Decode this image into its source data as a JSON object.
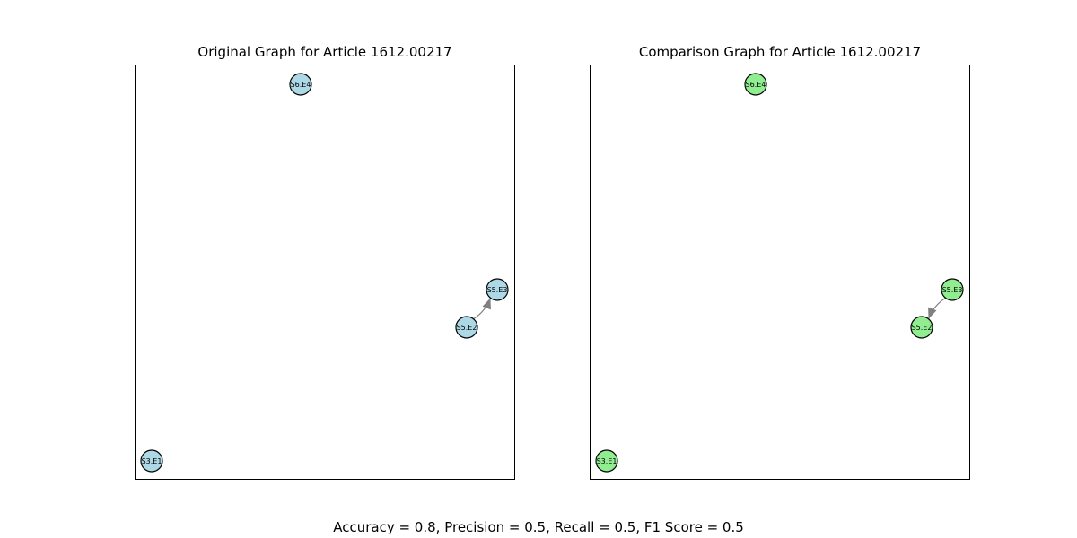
{
  "graphs": [
    {
      "title": "Original Graph for Article 1612.00217",
      "node_color": "#add8e6",
      "nodes": [
        "S6.E4",
        "S5.E3",
        "S5.E2",
        "S3.E1"
      ],
      "edges": [
        {
          "from": "S5.E2",
          "to": "S5.E3"
        }
      ]
    },
    {
      "title": "Comparison Graph for Article 1612.00217",
      "node_color": "#90ee90",
      "nodes": [
        "S6.E4",
        "S5.E3",
        "S5.E2",
        "S3.E1"
      ],
      "edges": [
        {
          "from": "S5.E3",
          "to": "S5.E2"
        }
      ]
    }
  ],
  "edge_color": "#808080",
  "metrics": {
    "text": "Accuracy = 0.8, Precision = 0.5, Recall = 0.5, F1 Score = 0.5"
  }
}
